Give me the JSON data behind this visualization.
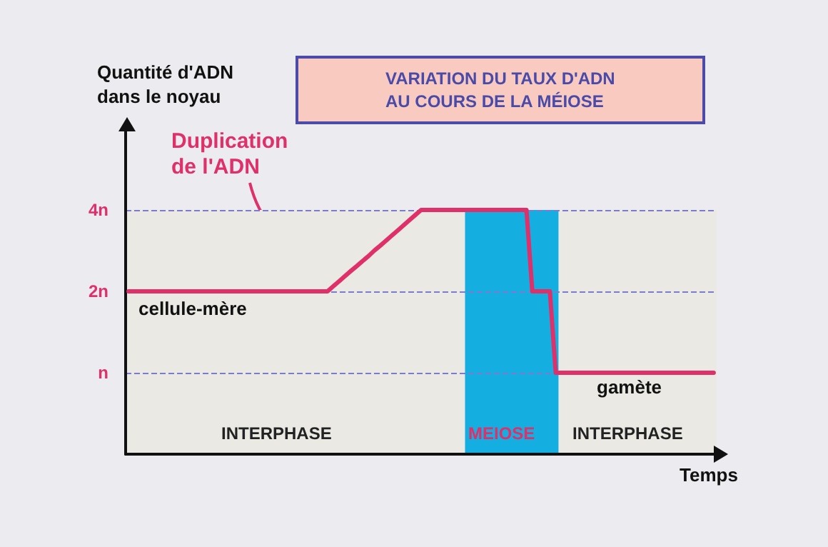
{
  "chart_data": {
    "type": "line",
    "title": "VARIATION DU TAUX D'ADN\nAU COURS DE LA MÉIOSE",
    "ylabel": "Quantité d'ADN\ndans le noyau",
    "xlabel": "Temps",
    "categories": [
      null,
      null,
      null,
      null,
      null,
      null,
      null,
      null,
      null,
      null,
      null,
      null,
      null,
      null,
      null,
      null,
      null,
      null,
      null,
      null,
      null,
      null,
      null,
      null,
      null,
      null,
      null,
      null,
      null,
      null,
      null,
      null,
      null,
      null,
      null,
      null,
      null,
      null,
      null,
      null,
      null,
      null,
      null,
      null,
      null,
      null,
      null,
      null,
      null,
      null,
      null,
      null,
      null,
      null,
      null,
      null,
      null,
      null,
      null,
      null,
      null,
      null,
      null,
      null,
      null,
      null,
      null,
      null,
      null,
      null,
      null,
      null,
      null,
      null,
      null,
      null,
      null,
      null,
      null,
      null,
      null,
      null,
      null,
      null,
      null,
      null,
      null,
      null,
      null,
      null,
      null,
      null,
      null,
      null,
      null,
      null,
      null,
      null,
      null,
      null,
      null
    ],
    "series": [
      {
        "color": "#e0306a",
        "values": [
          2,
          2,
          2,
          2,
          2,
          2,
          2,
          2,
          2,
          2,
          2,
          2,
          2,
          2,
          2,
          2,
          2,
          2,
          2,
          2,
          2,
          2,
          2,
          2,
          2,
          2,
          2,
          2,
          2,
          2,
          2,
          2,
          2,
          2,
          2,
          2.09,
          2.18,
          2.28,
          2.38,
          2.48,
          2.59,
          2.7,
          2.83,
          2.95,
          3.08,
          3.22,
          3.36,
          3.51,
          3.67,
          3.83,
          4,
          4,
          4,
          4,
          4,
          4,
          4,
          4,
          4,
          4,
          4,
          4,
          4,
          4,
          4,
          4,
          4,
          4,
          4,
          2,
          2,
          2,
          2,
          1,
          1,
          1,
          1,
          1,
          1,
          1,
          1,
          1,
          1,
          1,
          1,
          1,
          1,
          1,
          1,
          1,
          1,
          1,
          1,
          1,
          1,
          1,
          1,
          1,
          1,
          1,
          1
        ]
      }
    ],
    "log": "y",
    "ylim": [
      0.5,
      8
    ],
    "yticks": [
      {
        "value": 1,
        "label": "n"
      },
      {
        "value": 2,
        "label": "2n"
      },
      {
        "value": 4,
        "label": "4n"
      }
    ],
    "tick_labels": "y",
    "grid": "y",
    "line_style": "solid",
    "annotations": [
      "Duplication\nde l'ADN",
      "cellule-mère",
      "gamète",
      "INTERPHASE",
      "MEIOSE",
      "INTERPHASE"
    ]
  }
}
